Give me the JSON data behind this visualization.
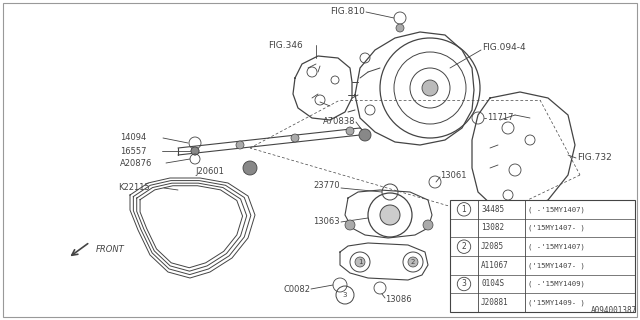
{
  "bg_color": "#ffffff",
  "fig_width": 6.4,
  "fig_height": 3.2,
  "dpi": 100,
  "line_color": "#444444",
  "table_rows": [
    {
      "circle": "1",
      "part": "34485",
      "note": "( -'15MY1407)"
    },
    {
      "circle": "",
      "part": "13082",
      "note": "('15MY1407- )"
    },
    {
      "circle": "2",
      "part": "J2085",
      "note": "( -'15MY1407)"
    },
    {
      "circle": "",
      "part": "A11067",
      "note": "('15MY1407- )"
    },
    {
      "circle": "3",
      "part": "0104S",
      "note": "( -'15MY1409)"
    },
    {
      "circle": "",
      "part": "J20881",
      "note": "('15MY1409- )"
    }
  ],
  "bottom_label": "A094001387"
}
